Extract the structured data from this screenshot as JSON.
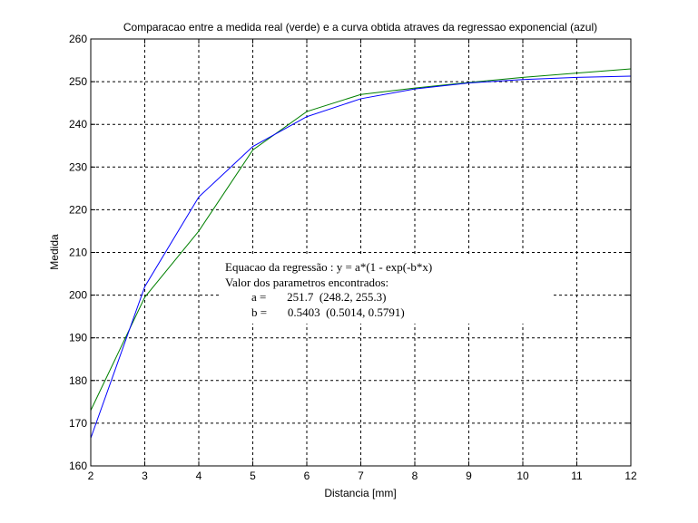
{
  "chart_data": {
    "type": "line",
    "title": "Comparacao entre a medida real (verde) e a curva obtida atraves da regressao exponencial (azul)",
    "xlabel": "Distancia [mm]",
    "ylabel": "Medida",
    "xlim": [
      2,
      12
    ],
    "ylim": [
      160,
      260
    ],
    "xticks": [
      "2",
      "3",
      "4",
      "5",
      "6",
      "7",
      "8",
      "9",
      "10",
      "11",
      "12"
    ],
    "yticks": [
      "160",
      "170",
      "180",
      "190",
      "200",
      "210",
      "220",
      "230",
      "240",
      "250",
      "260"
    ],
    "grid": true,
    "legend": "none",
    "series": [
      {
        "color": "#008000",
        "x": [
          2,
          3,
          4,
          5,
          6,
          7,
          8,
          9,
          10,
          11,
          12
        ],
        "y": [
          173,
          199.5,
          215,
          234,
          243,
          247,
          248.5,
          249.8,
          251,
          252,
          253
        ]
      },
      {
        "color": "#0000ff",
        "x": [
          2,
          3,
          4,
          5,
          6,
          7,
          8,
          9,
          10,
          11,
          12
        ],
        "y": [
          166.5,
          202,
          223,
          234.8,
          241.8,
          246,
          248.3,
          249.7,
          250.5,
          251,
          251.3
        ]
      }
    ],
    "annotation": {
      "line1": "Equacao da regressão : y = a*(1 - exp(-b*x)",
      "line2": "Valor dos parametros encontrados:",
      "line3": "a =       251.7  (248.2, 255.3)",
      "line4": "b =       0.5403  (0.5014, 0.5791)"
    }
  }
}
